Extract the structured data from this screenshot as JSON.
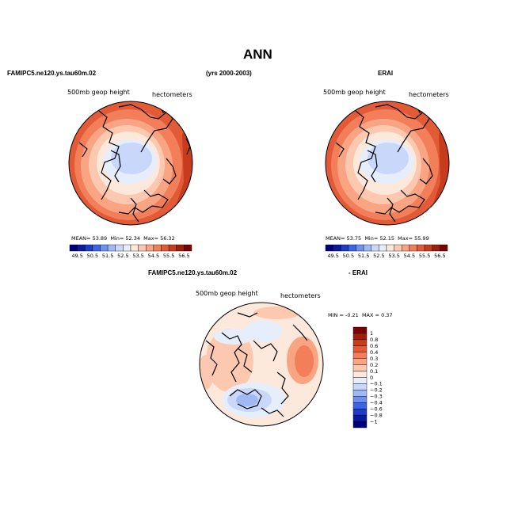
{
  "page": {
    "title": "ANN",
    "years": "(yrs 2000-2003)"
  },
  "colors": {
    "scale": [
      "#00007f",
      "#0a1aa0",
      "#1e3cc8",
      "#3c64e6",
      "#6e91f0",
      "#a0b9f5",
      "#c8d7fa",
      "#e6eefc",
      "#fde8dc",
      "#fcc8b0",
      "#f9a583",
      "#f27f5a",
      "#e35a37",
      "#c83c1e",
      "#a01e0a",
      "#7f0000"
    ],
    "land": "#000000"
  },
  "chart_data": [
    {
      "type": "heatmap",
      "title": "FAMIPC5.ne120.ys.tau60m.02",
      "subtitle": "500mb geop height",
      "units": "hectometers",
      "stats": {
        "mean_label": "MEAN=",
        "mean": "53.89",
        "min_label": "Min=",
        "min": "52.34",
        "max_label": "Max=",
        "max": "56.32"
      },
      "levels": [
        49.5,
        50.5,
        51.5,
        52.5,
        53.5,
        54.5,
        55.5,
        56.5
      ],
      "level_labels": [
        "49.5",
        "50.5",
        "51.5",
        "52.5",
        "53.5",
        "54.5",
        "55.5",
        "56.5"
      ]
    },
    {
      "type": "heatmap",
      "title": "ERAI",
      "subtitle": "500mb geop height",
      "units": "hectometers",
      "stats": {
        "mean_label": "MEAN=",
        "mean": "53.75",
        "min_label": "Min=",
        "min": "52.15",
        "max_label": "Max=",
        "max": "55.99"
      },
      "levels": [
        49.5,
        50.5,
        51.5,
        52.5,
        53.5,
        54.5,
        55.5,
        56.5
      ],
      "level_labels": [
        "49.5",
        "50.5",
        "51.5",
        "52.5",
        "53.5",
        "54.5",
        "55.5",
        "56.5"
      ]
    },
    {
      "type": "heatmap",
      "title_left": "FAMIPC5.ne120.ys.tau60m.02",
      "title_right": "- ERAI",
      "subtitle": "500mb geop height",
      "units": "hectometers",
      "stats": {
        "min_label": "MIN =",
        "min": "-0.21",
        "max_label": "MAX =",
        "max": "0.37"
      },
      "levels": [
        -1,
        -0.8,
        -0.6,
        -0.4,
        -0.3,
        -0.2,
        -0.1,
        0,
        0.1,
        0.2,
        0.3,
        0.4,
        0.6,
        0.8,
        1
      ],
      "level_labels": [
        "1",
        "0.8",
        "0.6",
        "0.4",
        "0.3",
        "0.2",
        "0.1",
        "0",
        "−0.1",
        "−0.2",
        "−0.3",
        "−0.4",
        "−0.6",
        "−0.8",
        "−1"
      ]
    }
  ]
}
